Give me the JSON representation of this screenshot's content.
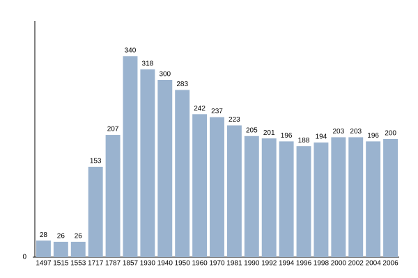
{
  "chart_data": {
    "type": "bar",
    "categories": [
      "1497",
      "1515",
      "1553",
      "1717",
      "1787",
      "1857",
      "1930",
      "1940",
      "1950",
      "1960",
      "1970",
      "1981",
      "1990",
      "1992",
      "1994",
      "1996",
      "1998",
      "2000",
      "2002",
      "2004",
      "2006"
    ],
    "values": [
      28,
      26,
      26,
      153,
      207,
      340,
      318,
      300,
      283,
      242,
      237,
      223,
      205,
      201,
      196,
      188,
      194,
      203,
      203,
      196,
      200
    ],
    "color": "#9ab3cf",
    "ylim": [
      0,
      400
    ],
    "yticks": [
      0
    ]
  }
}
